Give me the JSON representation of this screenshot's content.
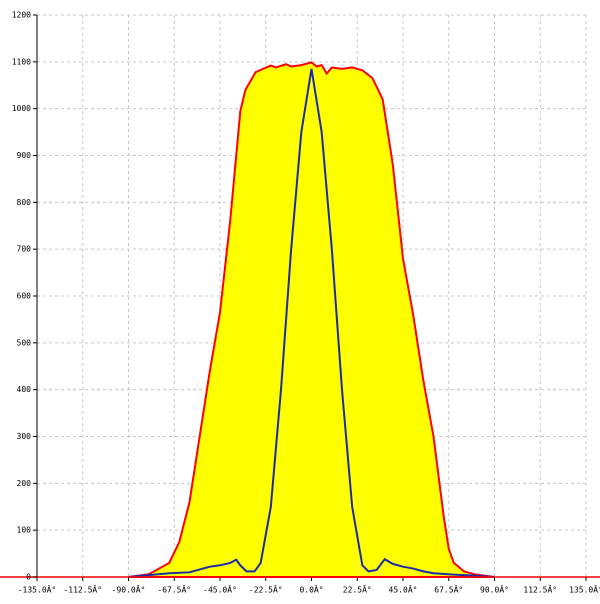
{
  "chart_data": {
    "type": "area-line",
    "xlim": [
      -135,
      135
    ],
    "ylim": [
      0,
      1200
    ],
    "grid": true,
    "xticks": [
      {
        "value": -135,
        "label": "-135.0Â°"
      },
      {
        "value": -112.5,
        "label": "-112.5Â°"
      },
      {
        "value": -90,
        "label": "-90.0Â°"
      },
      {
        "value": -67.5,
        "label": "-67.5Â°"
      },
      {
        "value": -45,
        "label": "-45.0Â°"
      },
      {
        "value": -22.5,
        "label": "-22.5Â°"
      },
      {
        "value": 0,
        "label": "0.0Â°"
      },
      {
        "value": 22.5,
        "label": "22.5Â°"
      },
      {
        "value": 45,
        "label": "45.0Â°"
      },
      {
        "value": 67.5,
        "label": "67.5Â°"
      },
      {
        "value": 90,
        "label": "90.0Â°"
      },
      {
        "value": 112.5,
        "label": "112.5Â°"
      },
      {
        "value": 135,
        "label": "135.0Â°"
      }
    ],
    "yticks": [
      0,
      100,
      200,
      300,
      400,
      500,
      600,
      700,
      800,
      900,
      1000,
      1100,
      1200
    ],
    "series": [
      {
        "color": "#ffff00",
        "edge": "#ff0000",
        "fill": true,
        "x": [
          -90,
          -80,
          -70,
          -65,
          -60,
          -55,
          -50,
          -45,
          -40,
          -35,
          -32.5,
          -27.5,
          -20,
          -17.5,
          -12.5,
          -10,
          -5,
          0,
          2.5,
          5,
          7.5,
          10,
          15,
          20,
          25,
          30,
          35,
          40,
          45,
          50,
          55,
          60,
          65,
          67.5,
          70,
          75,
          80,
          90
        ],
        "values": [
          0,
          6,
          30,
          75,
          160,
          300,
          440,
          565,
          760,
          995,
          1040,
          1078,
          1092,
          1088,
          1095,
          1090,
          1093,
          1099,
          1090,
          1093,
          1075,
          1088,
          1085,
          1088,
          1082,
          1065,
          1020,
          880,
          680,
          560,
          420,
          300,
          130,
          60,
          30,
          12,
          6,
          0
        ]
      },
      {
        "color": "#1c2ca8",
        "fill": false,
        "x": [
          -90,
          -70,
          -60,
          -50,
          -45,
          -40,
          -37,
          -35,
          -32,
          -28,
          -25,
          -20,
          -15,
          -10,
          -5,
          0,
          5,
          10,
          15,
          20,
          25,
          28,
          32,
          36,
          40,
          45,
          50,
          55,
          60,
          70,
          80,
          90
        ],
        "values": [
          0,
          8,
          10,
          22,
          25,
          30,
          37,
          25,
          12,
          12,
          30,
          150,
          400,
          700,
          950,
          1085,
          950,
          700,
          400,
          150,
          25,
          12,
          15,
          38,
          28,
          22,
          18,
          12,
          8,
          5,
          3,
          0
        ]
      }
    ]
  }
}
